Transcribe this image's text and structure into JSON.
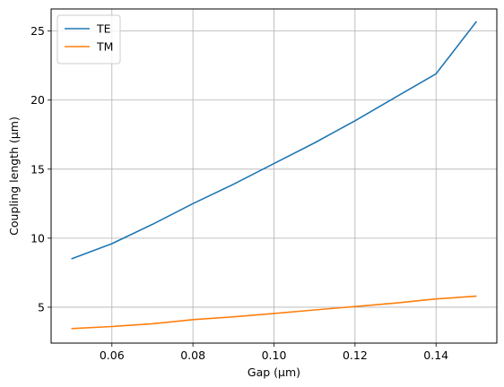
{
  "chart_data": {
    "type": "line",
    "xlabel": "Gap (µm)",
    "ylabel": "Coupling length (µm)",
    "xlim": [
      0.045,
      0.155
    ],
    "ylim": [
      2.4,
      26.6
    ],
    "xticks": [
      0.06,
      0.08,
      0.1,
      0.12,
      0.14
    ],
    "xtick_labels": [
      "0.06",
      "0.08",
      "0.10",
      "0.12",
      "0.14"
    ],
    "yticks": [
      5,
      10,
      15,
      20,
      25
    ],
    "ytick_labels": [
      "5",
      "10",
      "15",
      "20",
      "25"
    ],
    "grid": true,
    "legend_position": "top-left",
    "x": [
      0.05,
      0.06,
      0.07,
      0.08,
      0.09,
      0.1,
      0.11,
      0.12,
      0.13,
      0.14,
      0.15
    ],
    "series": [
      {
        "name": "TE",
        "color": "#1f77b4",
        "values": [
          8.5,
          9.6,
          11.0,
          12.5,
          13.9,
          15.4,
          16.9,
          18.5,
          20.2,
          21.9,
          25.7
        ]
      },
      {
        "name": "TM",
        "color": "#ff7f0e",
        "values": [
          3.45,
          3.6,
          3.8,
          4.1,
          4.3,
          4.55,
          4.8,
          5.05,
          5.3,
          5.6,
          5.8
        ]
      }
    ]
  }
}
